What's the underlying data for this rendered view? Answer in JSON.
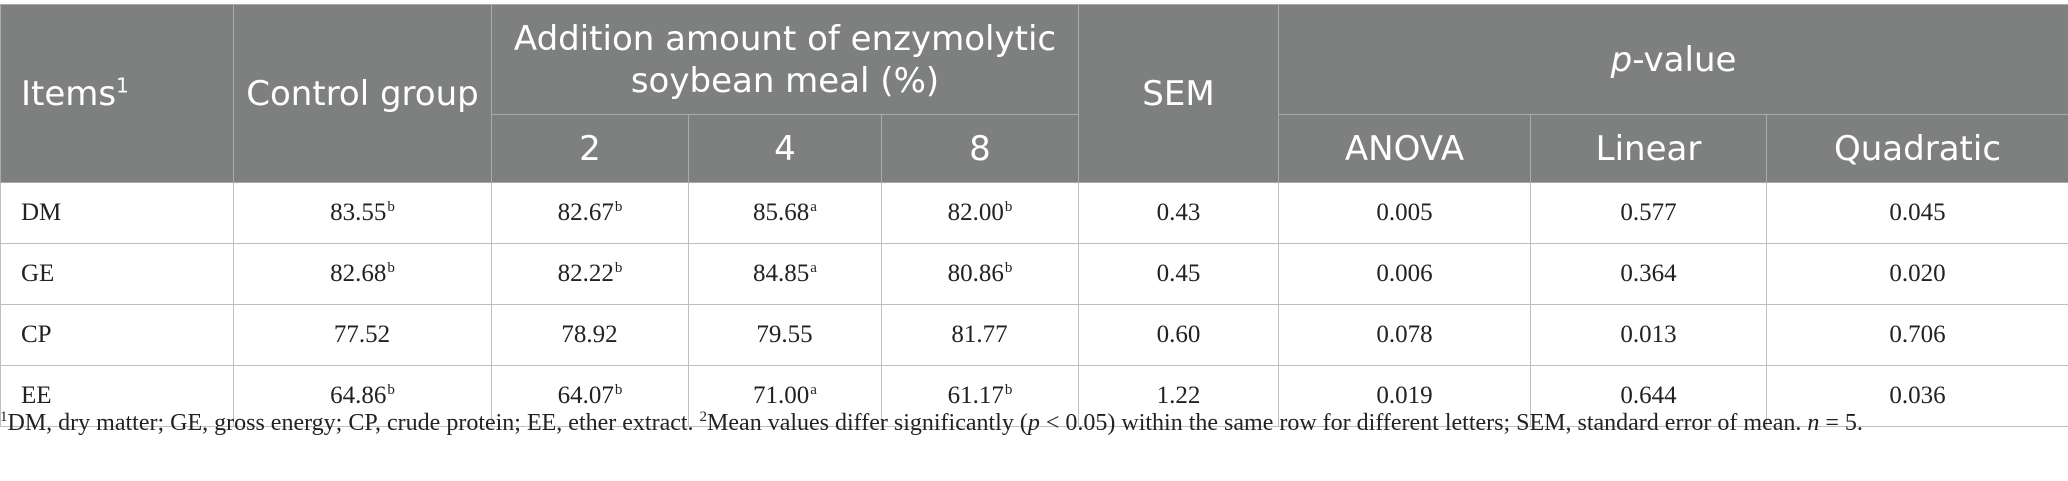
{
  "header": {
    "items": "Items",
    "items_sup": "1",
    "control": "Control group",
    "addition": "Addition amount of enzymolytic soybean meal (%)",
    "sem": "SEM",
    "p_italic": "p",
    "p_rest": "-value",
    "levels": [
      "2",
      "4",
      "8"
    ],
    "tests": [
      "ANOVA",
      "Linear",
      "Quadratic"
    ]
  },
  "rows": [
    {
      "item": "DM",
      "control": "83.55",
      "control_sup": "b",
      "v2": "82.67",
      "v2_sup": "b",
      "v4": "85.68",
      "v4_sup": "a",
      "v8": "82.00",
      "v8_sup": "b",
      "sem": "0.43",
      "anova": "0.005",
      "linear": "0.577",
      "quadratic": "0.045"
    },
    {
      "item": "GE",
      "control": "82.68",
      "control_sup": "b",
      "v2": "82.22",
      "v2_sup": "b",
      "v4": "84.85",
      "v4_sup": "a",
      "v8": "80.86",
      "v8_sup": "b",
      "sem": "0.45",
      "anova": "0.006",
      "linear": "0.364",
      "quadratic": "0.020"
    },
    {
      "item": "CP",
      "control": "77.52",
      "control_sup": "",
      "v2": "78.92",
      "v2_sup": "",
      "v4": "79.55",
      "v4_sup": "",
      "v8": "81.77",
      "v8_sup": "",
      "sem": "0.60",
      "anova": "0.078",
      "linear": "0.013",
      "quadratic": "0.706"
    },
    {
      "item": "EE",
      "control": "64.86",
      "control_sup": "b",
      "v2": "64.07",
      "v2_sup": "b",
      "v4": "71.00",
      "v4_sup": "a",
      "v8": "61.17",
      "v8_sup": "b",
      "sem": "1.22",
      "anova": "0.019",
      "linear": "0.644",
      "quadratic": "0.036"
    }
  ],
  "footnote": {
    "sup1": "1",
    "text1": "DM, dry matter; GE, gross energy; CP, crude protein; EE, ether extract. ",
    "sup2": "2",
    "text2a": "Mean values differ significantly (",
    "p": "p",
    "text2b": " < 0.05) within the same row for different letters; SEM, standard error of mean. ",
    "n": "n",
    "text2c": " = 5."
  },
  "colors": {
    "header_bg": "#7e807f",
    "header_text": "#ffffff",
    "grid": "#bfbfbf"
  }
}
